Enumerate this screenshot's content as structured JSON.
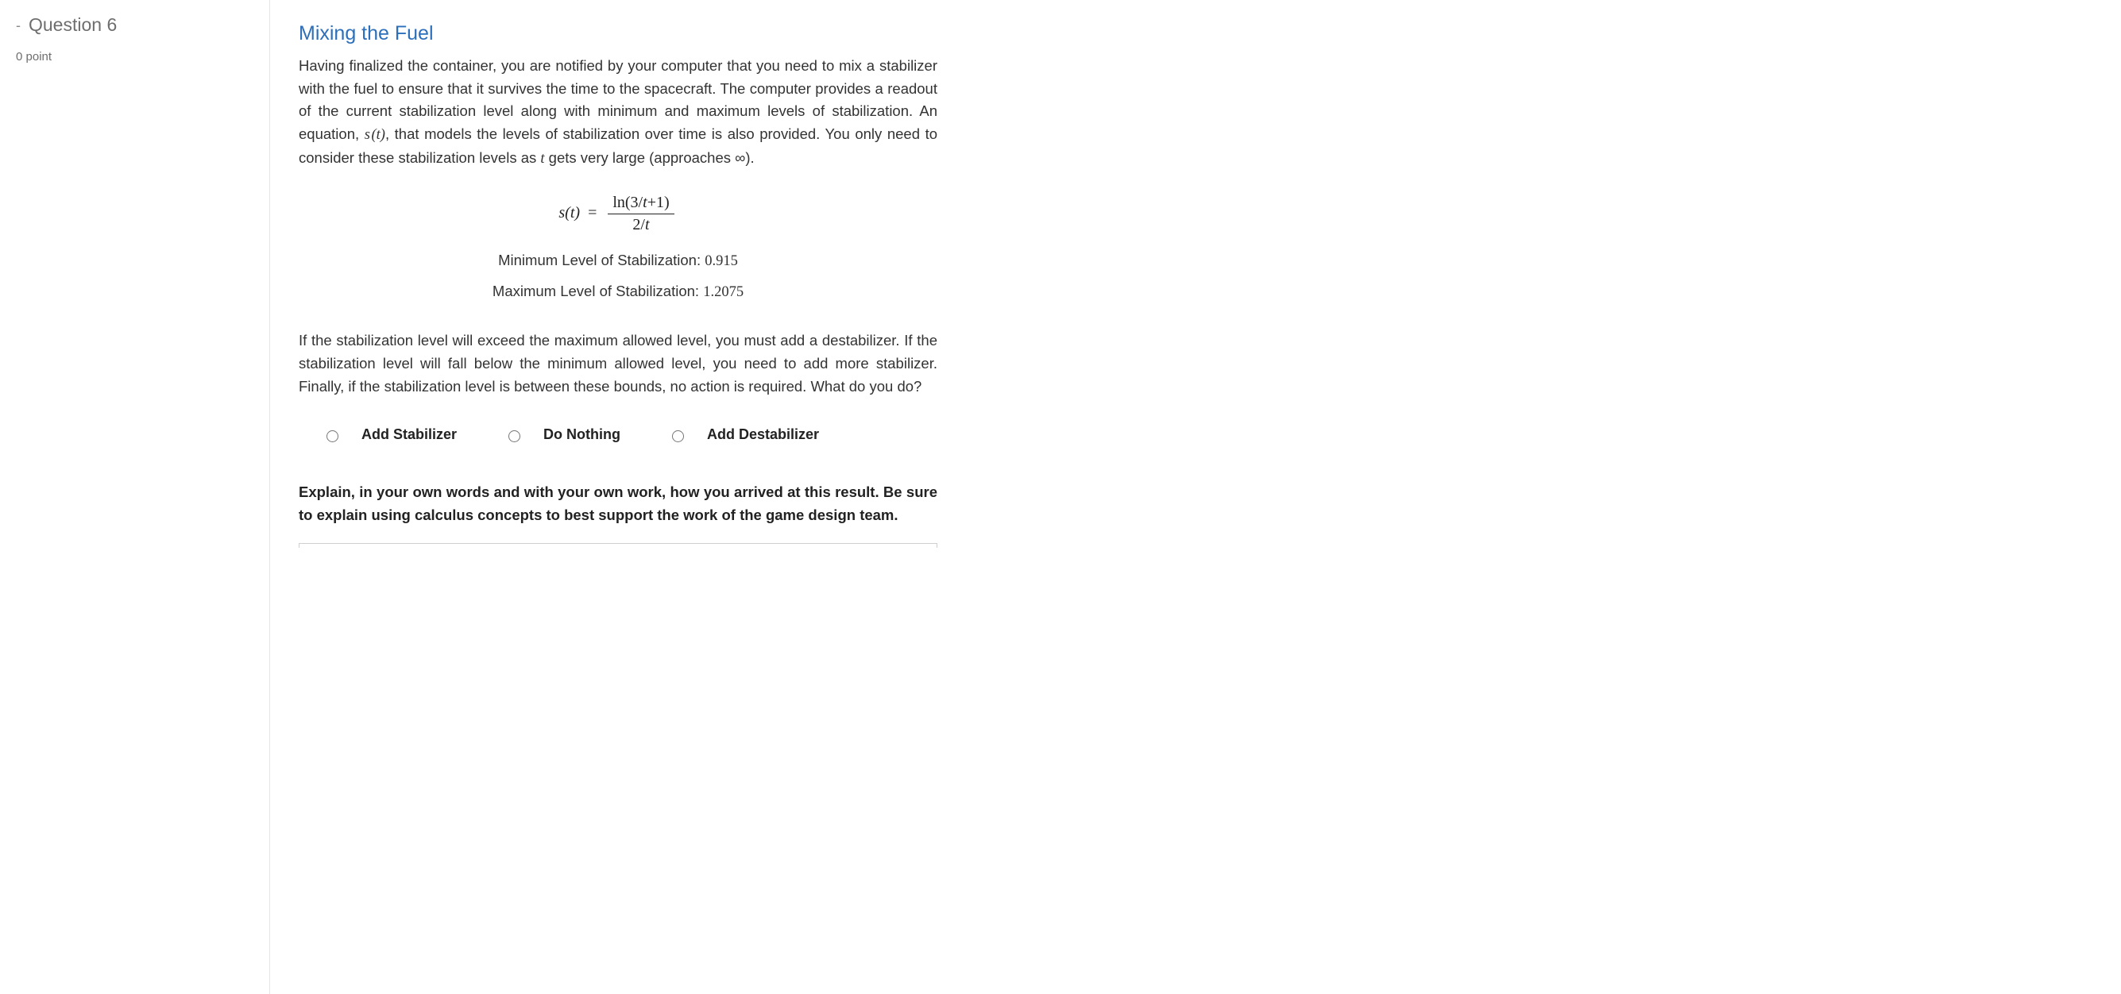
{
  "sidebar": {
    "question_label": "Question 6",
    "points_label": "0 point"
  },
  "content": {
    "title": "Mixing the Fuel",
    "intro_before_fn": "Having finalized the container, you are notified by your computer that you need to mix a stabilizer with the fuel to ensure that it survives the time to the spacecraft. The computer provides a readout of the current stabilization level along with minimum and maximum levels of stabilization. An equation, ",
    "fn_name": "s",
    "fn_arg": "t",
    "intro_mid": ", that models the levels of stabilization over time is also provided. You only need to consider these stabilization levels as ",
    "var_t": "t",
    "intro_after_var": " gets very large (approaches ∞).",
    "equation": {
      "lhs_fn": "s",
      "lhs_arg": "t",
      "numerator": "ln(3/t+1)",
      "denominator": "2/t"
    },
    "levels": {
      "min_label": "Minimum Level of Stabilization: ",
      "min_value": "0.915",
      "max_label": "Maximum Level of Stabilization: ",
      "max_value": "1.2075"
    },
    "instructions": "If the stabilization level will exceed the maximum allowed level, you must add a destabilizer. If the stabilization level will fall below the minimum allowed level, you need to add more stabilizer. Finally, if the stabilization level is between these bounds, no action is required. What do you do?",
    "options": [
      {
        "label": "Add Stabilizer"
      },
      {
        "label": "Do Nothing"
      },
      {
        "label": "Add Destabilizer"
      }
    ],
    "explain_prompt": "Explain, in your own words and with your own work, how you arrived at this result. Be sure to explain using calculus concepts to best support the work of the game design team."
  }
}
